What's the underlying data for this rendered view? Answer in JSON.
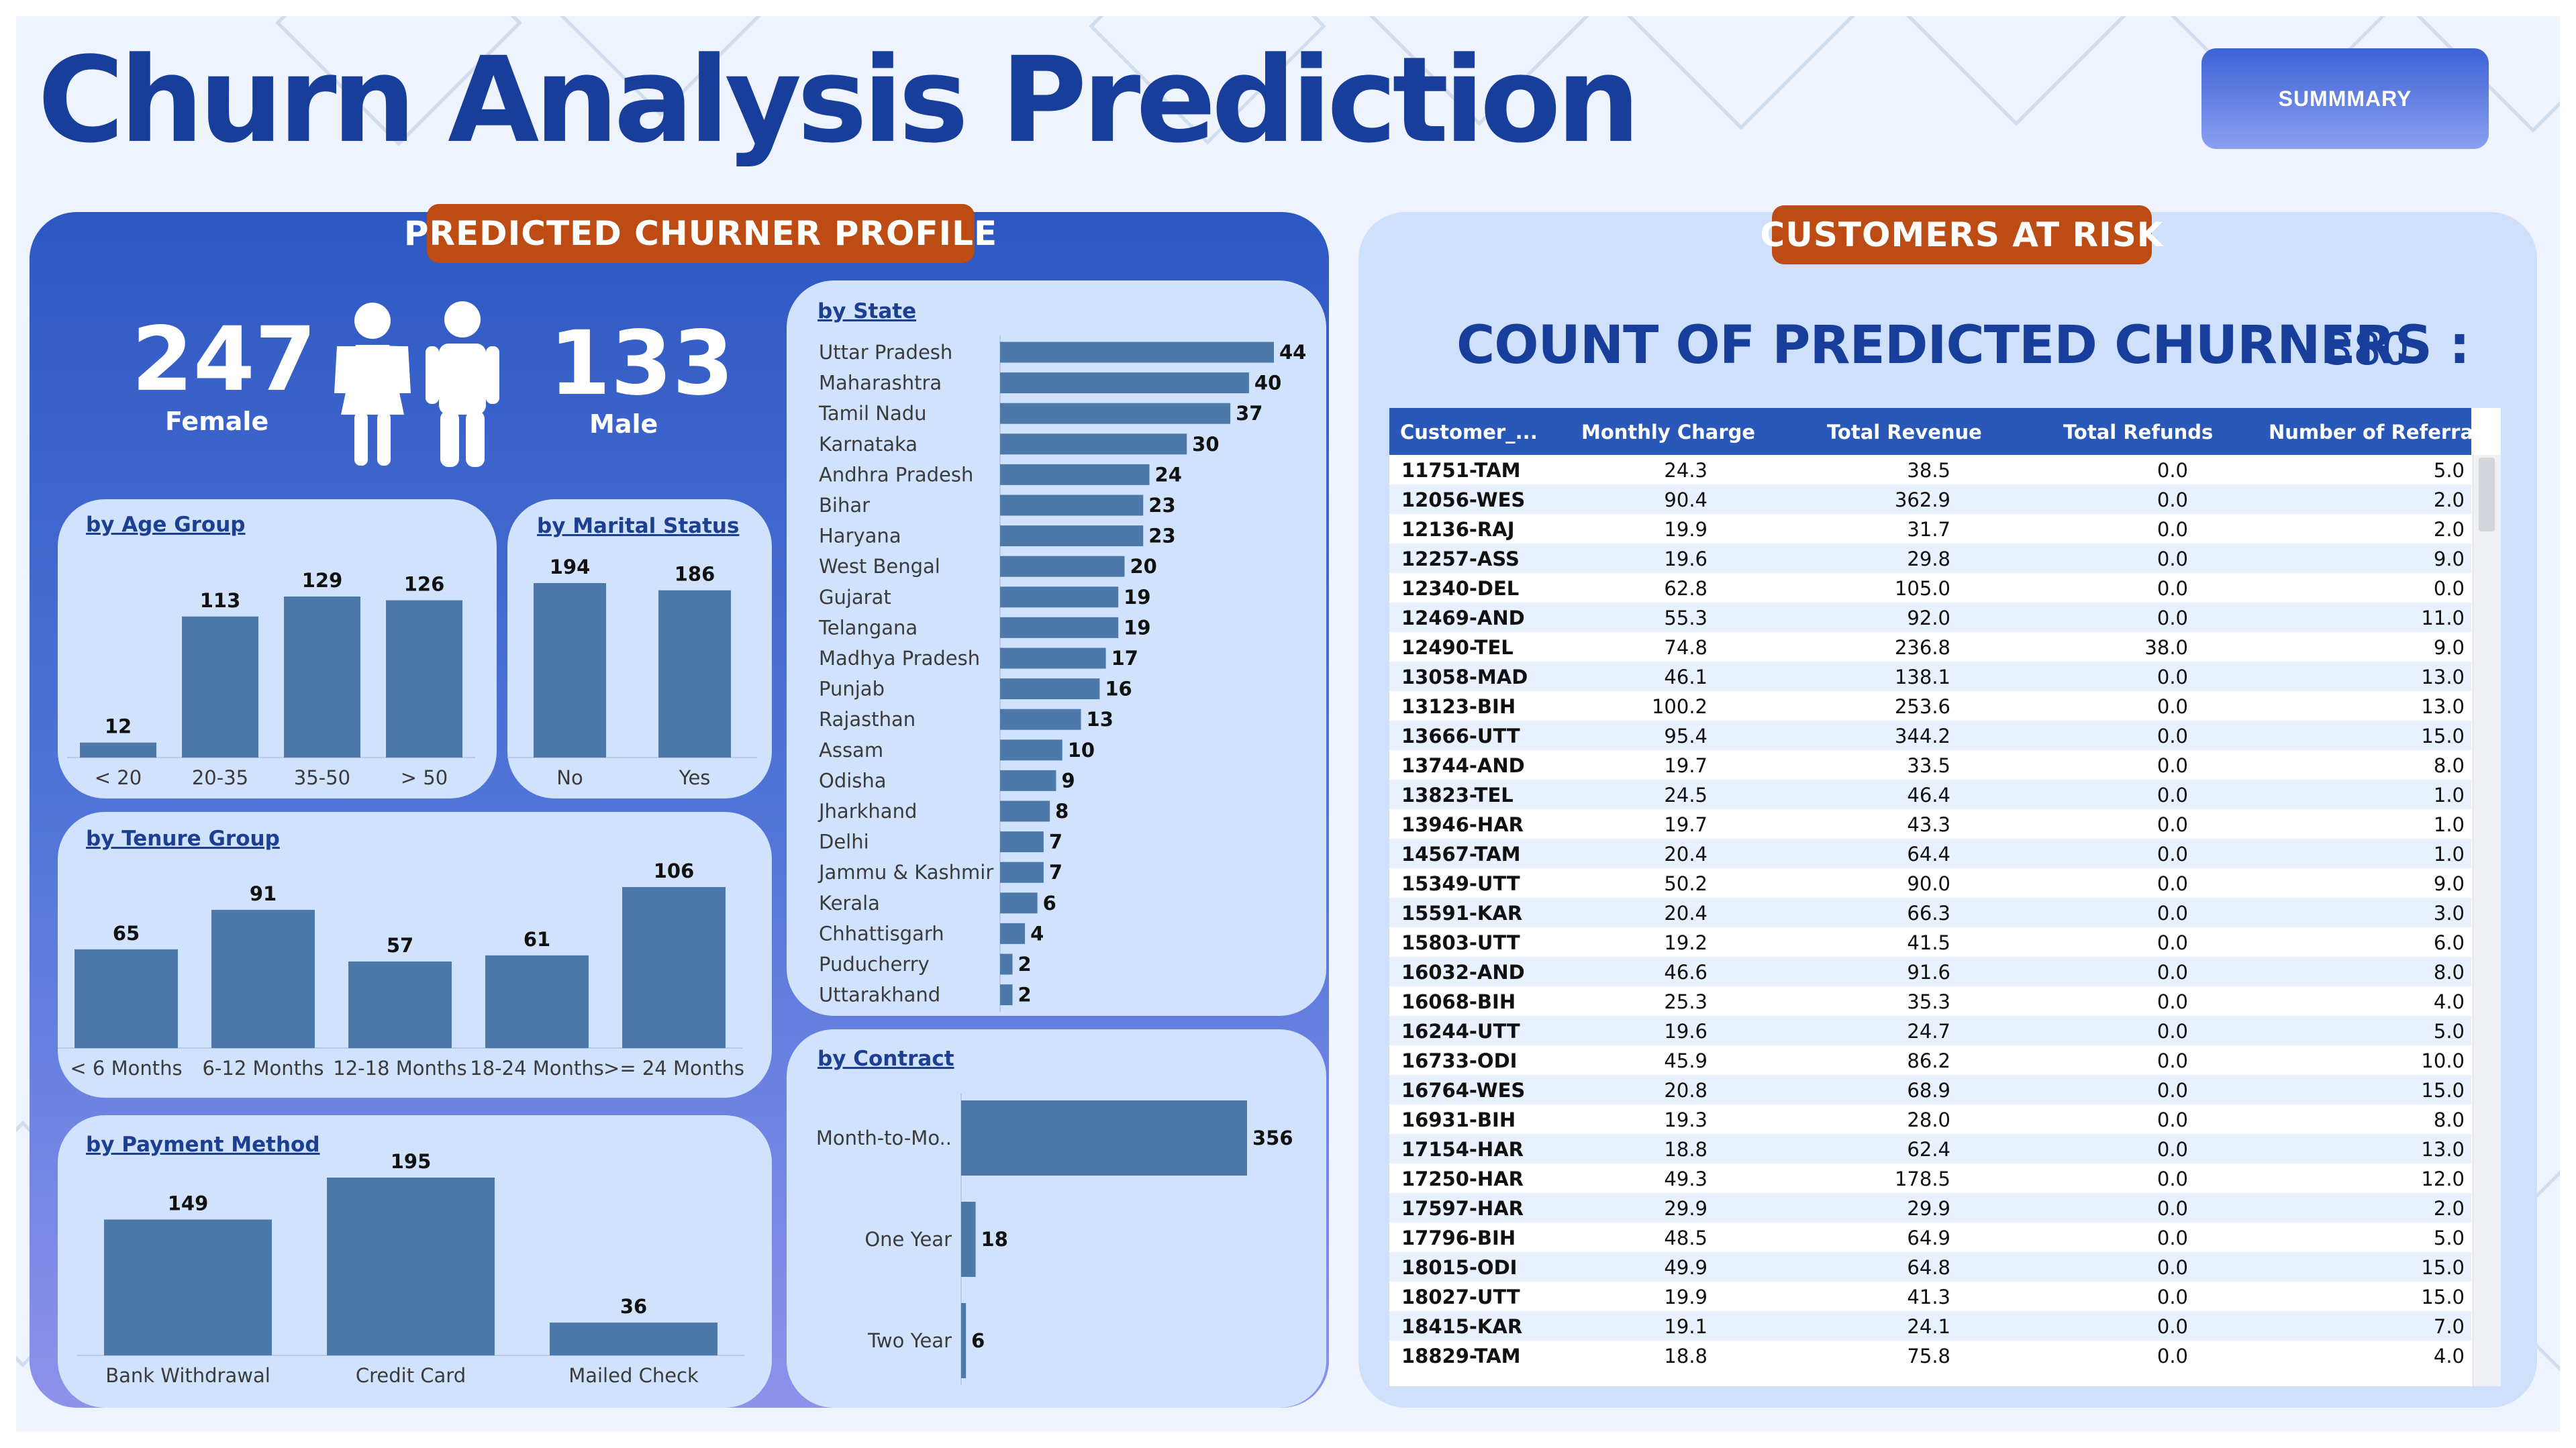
{
  "title": "Churn Analysis Prediction",
  "summary_button": "SUMMMARY",
  "left_section_title": "PREDICTED CHURNER PROFILE",
  "right_section_title": "CUSTOMERS AT RISK",
  "gender": {
    "female_count": "247",
    "female_label": "Female",
    "male_count": "133",
    "male_label": "Male",
    "female_icon": "female-person-icon",
    "male_icon": "male-person-icon"
  },
  "colors": {
    "bar": "#4d79aa",
    "pill": "#bc4c13",
    "title": "#173e9a",
    "header": "#2a58b8"
  },
  "chart_data": [
    {
      "id": "age",
      "type": "bar",
      "title": "by Age Group",
      "categories": [
        "< 20",
        "20-35",
        "35-50",
        "> 50"
      ],
      "values": [
        12,
        113,
        129,
        126
      ]
    },
    {
      "id": "marital",
      "type": "bar",
      "title": "by Marital Status",
      "categories": [
        "No",
        "Yes"
      ],
      "values": [
        194,
        186
      ]
    },
    {
      "id": "tenure",
      "type": "bar",
      "title": "by Tenure Group",
      "categories": [
        "< 6 Months",
        "6-12 Months",
        "12-18 Months",
        "18-24 Months",
        ">= 24 Months"
      ],
      "values": [
        65,
        91,
        57,
        61,
        106
      ]
    },
    {
      "id": "payment",
      "type": "bar",
      "title": "by Payment Method",
      "categories": [
        "Bank Withdrawal",
        "Credit Card",
        "Mailed Check"
      ],
      "values": [
        149,
        195,
        36
      ]
    },
    {
      "id": "state",
      "type": "bar",
      "orientation": "horizontal",
      "title": "by State",
      "categories": [
        "Uttar Pradesh",
        "Maharashtra",
        "Tamil Nadu",
        "Karnataka",
        "Andhra Pradesh",
        "Bihar",
        "Haryana",
        "West Bengal",
        "Gujarat",
        "Telangana",
        "Madhya Pradesh",
        "Punjab",
        "Rajasthan",
        "Assam",
        "Odisha",
        "Jharkhand",
        "Delhi",
        "Jammu & Kashmir",
        "Kerala",
        "Chhattisgarh",
        "Puducherry",
        "Uttarakhand"
      ],
      "values": [
        44,
        40,
        37,
        30,
        24,
        23,
        23,
        20,
        19,
        19,
        17,
        16,
        13,
        10,
        9,
        8,
        7,
        7,
        6,
        4,
        2,
        2
      ]
    },
    {
      "id": "contract",
      "type": "bar",
      "orientation": "horizontal",
      "title": "by Contract",
      "categories": [
        "Month-to-Mo..",
        "One Year",
        "Two Year"
      ],
      "values": [
        356,
        18,
        6
      ]
    }
  ],
  "count": {
    "label": "COUNT OF PREDICTED CHURNERS :",
    "value": "380"
  },
  "table": {
    "columns": [
      "Customer_...",
      "Monthly Charge",
      "Total Revenue",
      "Total Refunds",
      "Number of Referrals"
    ],
    "rows": [
      [
        "11751-TAM",
        "24.3",
        "38.5",
        "0.0",
        "5.0"
      ],
      [
        "12056-WES",
        "90.4",
        "362.9",
        "0.0",
        "2.0"
      ],
      [
        "12136-RAJ",
        "19.9",
        "31.7",
        "0.0",
        "2.0"
      ],
      [
        "12257-ASS",
        "19.6",
        "29.8",
        "0.0",
        "9.0"
      ],
      [
        "12340-DEL",
        "62.8",
        "105.0",
        "0.0",
        "0.0"
      ],
      [
        "12469-AND",
        "55.3",
        "92.0",
        "0.0",
        "11.0"
      ],
      [
        "12490-TEL",
        "74.8",
        "236.8",
        "38.0",
        "9.0"
      ],
      [
        "13058-MAD",
        "46.1",
        "138.1",
        "0.0",
        "13.0"
      ],
      [
        "13123-BIH",
        "100.2",
        "253.6",
        "0.0",
        "13.0"
      ],
      [
        "13666-UTT",
        "95.4",
        "344.2",
        "0.0",
        "15.0"
      ],
      [
        "13744-AND",
        "19.7",
        "33.5",
        "0.0",
        "8.0"
      ],
      [
        "13823-TEL",
        "24.5",
        "46.4",
        "0.0",
        "1.0"
      ],
      [
        "13946-HAR",
        "19.7",
        "43.3",
        "0.0",
        "1.0"
      ],
      [
        "14567-TAM",
        "20.4",
        "64.4",
        "0.0",
        "1.0"
      ],
      [
        "15349-UTT",
        "50.2",
        "90.0",
        "0.0",
        "9.0"
      ],
      [
        "15591-KAR",
        "20.4",
        "66.3",
        "0.0",
        "3.0"
      ],
      [
        "15803-UTT",
        "19.2",
        "41.5",
        "0.0",
        "6.0"
      ],
      [
        "16032-AND",
        "46.6",
        "91.6",
        "0.0",
        "8.0"
      ],
      [
        "16068-BIH",
        "25.3",
        "35.3",
        "0.0",
        "4.0"
      ],
      [
        "16244-UTT",
        "19.6",
        "24.7",
        "0.0",
        "5.0"
      ],
      [
        "16733-ODI",
        "45.9",
        "86.2",
        "0.0",
        "10.0"
      ],
      [
        "16764-WES",
        "20.8",
        "68.9",
        "0.0",
        "15.0"
      ],
      [
        "16931-BIH",
        "19.3",
        "28.0",
        "0.0",
        "8.0"
      ],
      [
        "17154-HAR",
        "18.8",
        "62.4",
        "0.0",
        "13.0"
      ],
      [
        "17250-HAR",
        "49.3",
        "178.5",
        "0.0",
        "12.0"
      ],
      [
        "17597-HAR",
        "29.9",
        "29.9",
        "0.0",
        "2.0"
      ],
      [
        "17796-BIH",
        "48.5",
        "64.9",
        "0.0",
        "5.0"
      ],
      [
        "18015-ODI",
        "49.9",
        "64.8",
        "0.0",
        "15.0"
      ],
      [
        "18027-UTT",
        "19.9",
        "41.3",
        "0.0",
        "15.0"
      ],
      [
        "18415-KAR",
        "19.1",
        "24.1",
        "0.0",
        "7.0"
      ],
      [
        "18829-TAM",
        "18.8",
        "75.8",
        "0.0",
        "4.0"
      ]
    ]
  }
}
